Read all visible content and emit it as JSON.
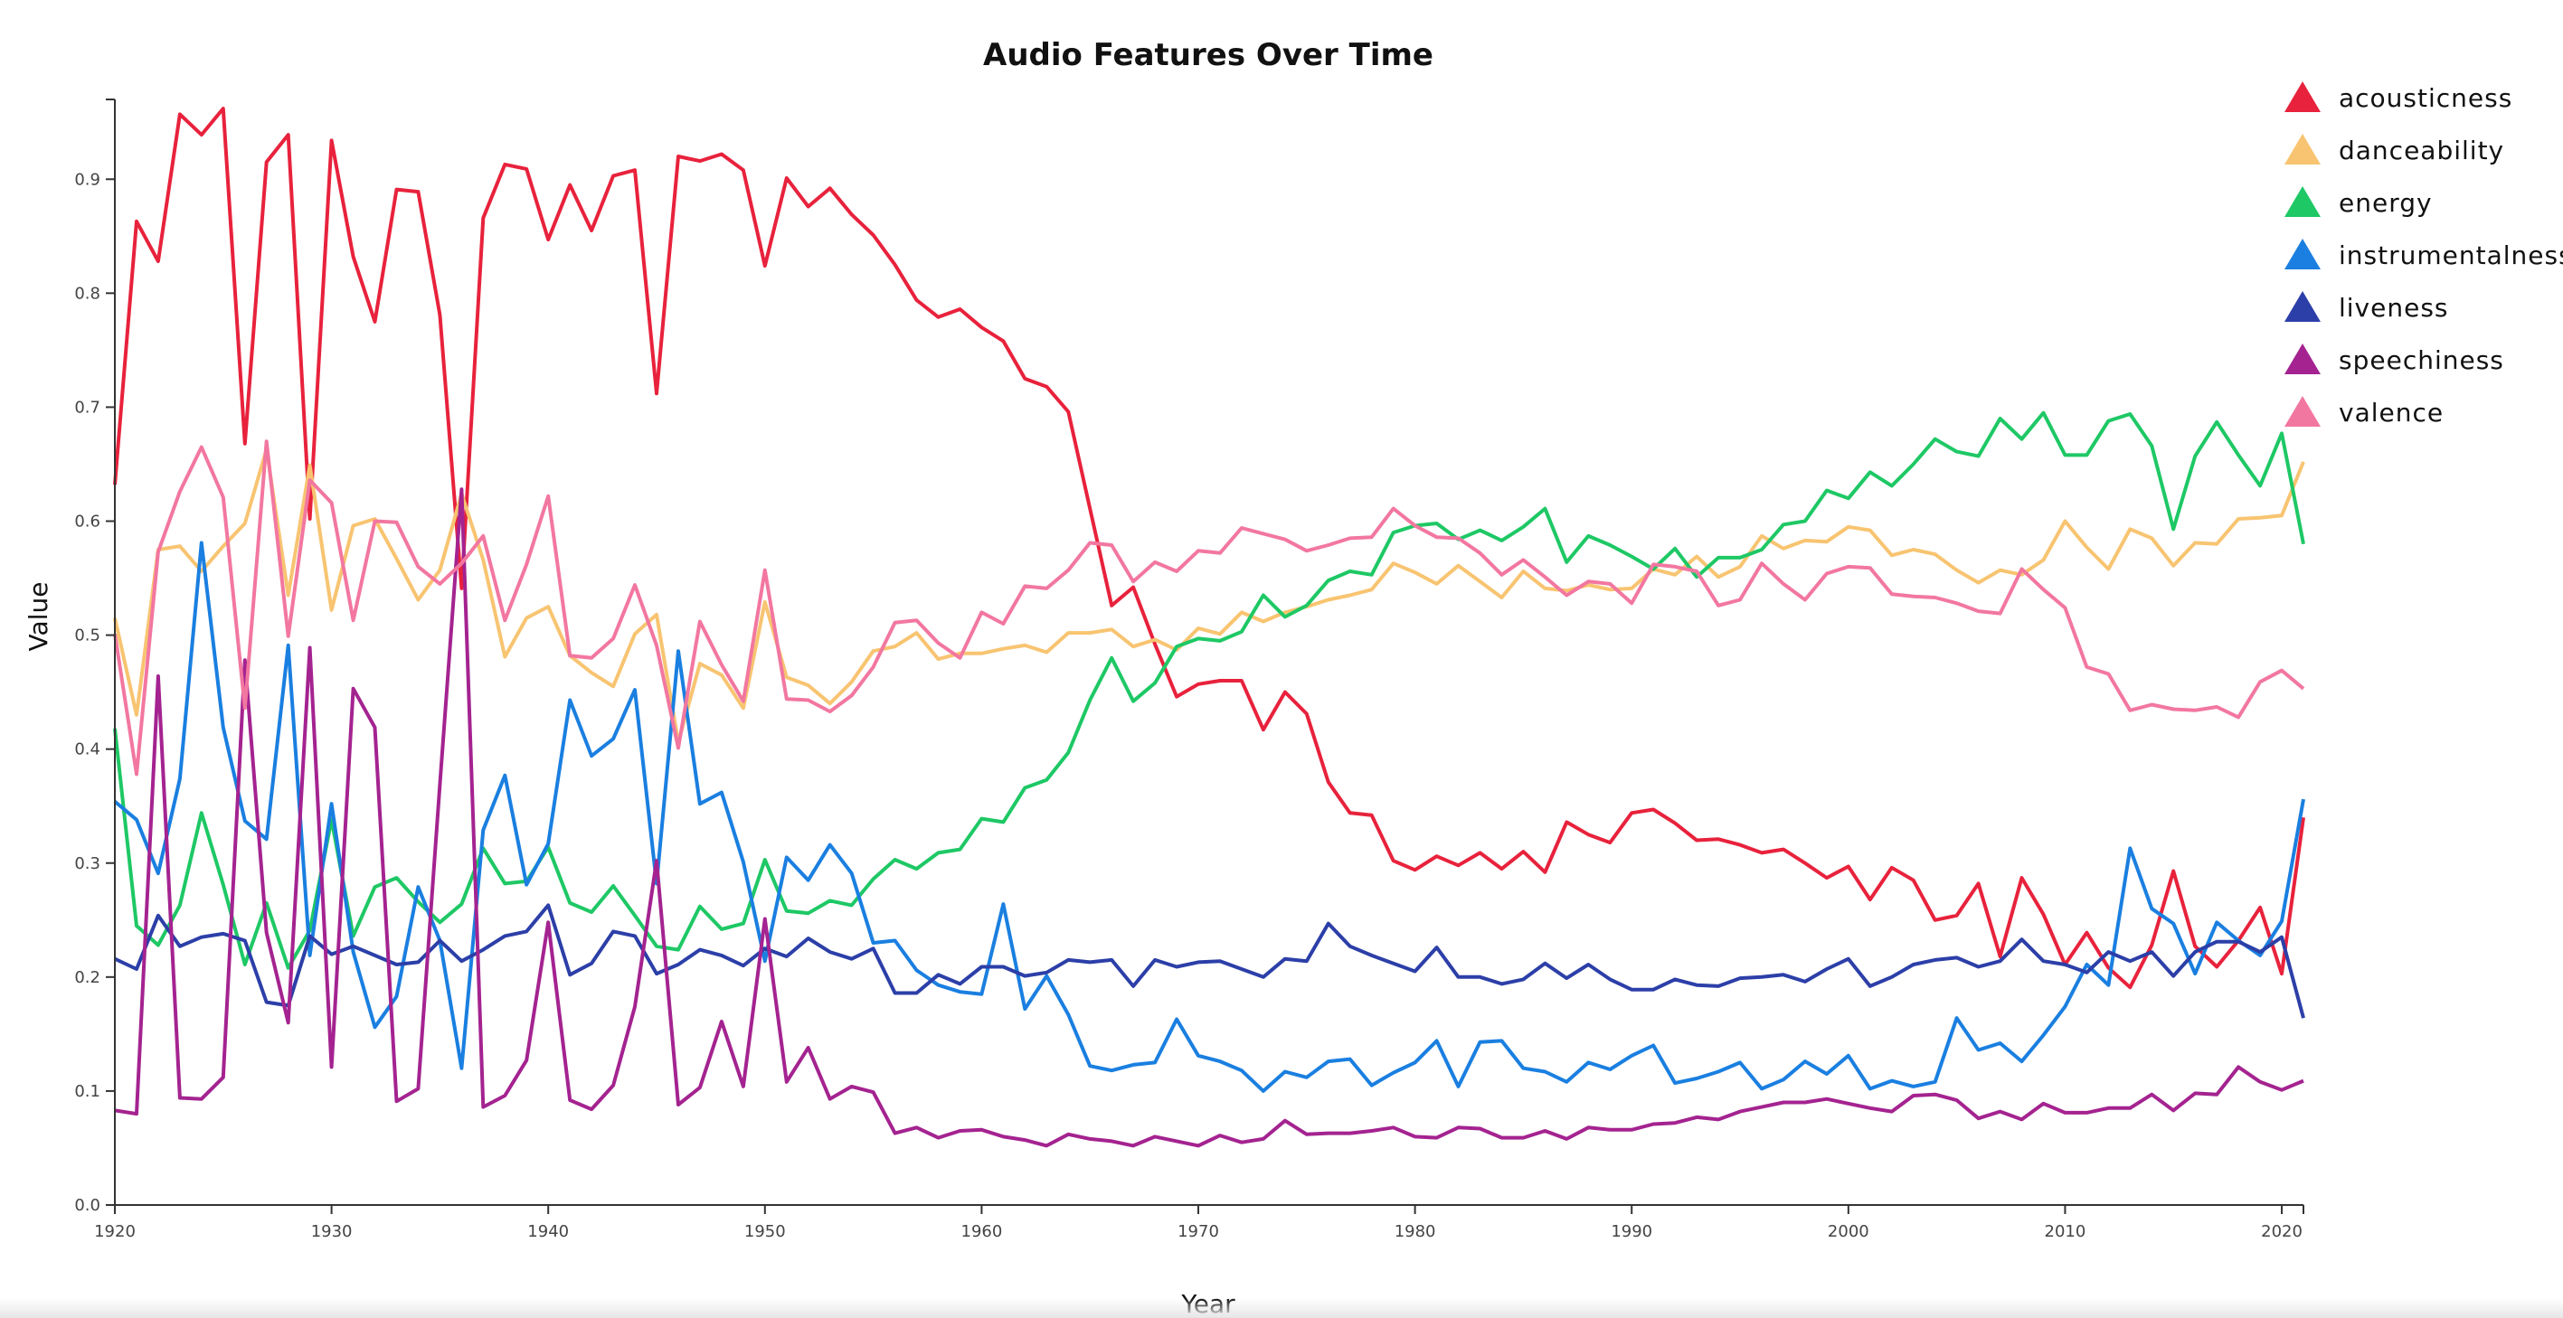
{
  "chart_data": {
    "type": "line",
    "title": "Audio Features Over Time",
    "xlabel": "Year",
    "ylabel": "Value",
    "xlim": [
      1920,
      2021
    ],
    "ylim": [
      0,
      0.97
    ],
    "x_ticks": [
      "1920",
      "1930",
      "1940",
      "1950",
      "1960",
      "1970",
      "1980",
      "1990",
      "2000",
      "2010",
      "2020"
    ],
    "y_ticks": [
      "0.0",
      "0.1",
      "0.2",
      "0.3",
      "0.4",
      "0.5",
      "0.6",
      "0.7",
      "0.8",
      "0.9"
    ],
    "grid": false,
    "legend_position": "top-right",
    "x": [
      1920,
      1921,
      1922,
      1923,
      1924,
      1925,
      1926,
      1927,
      1928,
      1929,
      1930,
      1931,
      1932,
      1933,
      1934,
      1935,
      1936,
      1937,
      1938,
      1939,
      1940,
      1941,
      1942,
      1943,
      1944,
      1945,
      1946,
      1947,
      1948,
      1949,
      1950,
      1951,
      1952,
      1953,
      1954,
      1955,
      1956,
      1957,
      1958,
      1959,
      1960,
      1961,
      1962,
      1963,
      1964,
      1965,
      1966,
      1967,
      1968,
      1969,
      1970,
      1971,
      1972,
      1973,
      1974,
      1975,
      1976,
      1977,
      1978,
      1979,
      1980,
      1981,
      1982,
      1983,
      1984,
      1985,
      1986,
      1987,
      1988,
      1989,
      1990,
      1991,
      1992,
      1993,
      1994,
      1995,
      1996,
      1997,
      1998,
      1999,
      2000,
      2001,
      2002,
      2003,
      2004,
      2005,
      2006,
      2007,
      2008,
      2009,
      2010,
      2011,
      2012,
      2013,
      2014,
      2015,
      2016,
      2017,
      2018,
      2019,
      2020,
      2021
    ],
    "series": [
      {
        "name": "acousticness",
        "color": "#e8223c",
        "values": [
          0.632,
          0.863,
          0.828,
          0.957,
          0.939,
          0.962,
          0.668,
          0.915,
          0.939,
          0.602,
          0.934,
          0.832,
          0.775,
          0.891,
          0.889,
          0.781,
          0.541,
          0.866,
          0.913,
          0.909,
          0.847,
          0.895,
          0.855,
          0.903,
          0.908,
          0.712,
          0.92,
          0.916,
          0.922,
          0.908,
          0.824,
          0.901,
          0.876,
          0.892,
          0.869,
          0.851,
          0.825,
          0.794,
          0.779,
          0.786,
          0.77,
          0.758,
          0.725,
          0.718,
          0.696,
          0.611,
          0.526,
          0.542,
          0.492,
          0.446,
          0.457,
          0.46,
          0.46,
          0.417,
          0.45,
          0.431,
          0.371,
          0.344,
          0.342,
          0.302,
          0.294,
          0.306,
          0.298,
          0.309,
          0.295,
          0.31,
          0.292,
          0.336,
          0.325,
          0.318,
          0.344,
          0.347,
          0.335,
          0.32,
          0.321,
          0.316,
          0.309,
          0.312,
          0.3,
          0.287,
          0.297,
          0.268,
          0.296,
          0.285,
          0.25,
          0.254,
          0.282,
          0.218,
          0.287,
          0.255,
          0.211,
          0.239,
          0.208,
          0.191,
          0.228,
          0.293,
          0.227,
          0.209,
          0.232,
          0.261,
          0.203,
          0.34
        ]
      },
      {
        "name": "danceability",
        "color": "#f8c471",
        "values": [
          0.515,
          0.43,
          0.575,
          0.578,
          0.556,
          0.578,
          0.598,
          0.663,
          0.535,
          0.649,
          0.522,
          0.596,
          0.602,
          0.567,
          0.531,
          0.557,
          0.624,
          0.566,
          0.481,
          0.515,
          0.525,
          0.482,
          0.467,
          0.455,
          0.501,
          0.518,
          0.406,
          0.475,
          0.465,
          0.436,
          0.529,
          0.463,
          0.456,
          0.44,
          0.459,
          0.486,
          0.49,
          0.502,
          0.479,
          0.484,
          0.484,
          0.488,
          0.491,
          0.485,
          0.502,
          0.502,
          0.505,
          0.49,
          0.496,
          0.487,
          0.506,
          0.501,
          0.52,
          0.512,
          0.52,
          0.525,
          0.531,
          0.535,
          0.54,
          0.563,
          0.555,
          0.545,
          0.561,
          0.547,
          0.533,
          0.556,
          0.541,
          0.539,
          0.544,
          0.54,
          0.541,
          0.558,
          0.553,
          0.569,
          0.551,
          0.56,
          0.587,
          0.576,
          0.583,
          0.582,
          0.595,
          0.592,
          0.57,
          0.575,
          0.571,
          0.557,
          0.546,
          0.557,
          0.553,
          0.566,
          0.6,
          0.577,
          0.558,
          0.593,
          0.585,
          0.561,
          0.581,
          0.58,
          0.602,
          0.603,
          0.605,
          0.652
        ]
      },
      {
        "name": "energy",
        "color": "#1ec865",
        "values": [
          0.418,
          0.245,
          0.228,
          0.263,
          0.344,
          0.281,
          0.211,
          0.265,
          0.208,
          0.241,
          0.338,
          0.236,
          0.279,
          0.287,
          0.266,
          0.248,
          0.264,
          0.313,
          0.282,
          0.284,
          0.314,
          0.265,
          0.257,
          0.28,
          0.254,
          0.227,
          0.224,
          0.262,
          0.242,
          0.247,
          0.303,
          0.258,
          0.256,
          0.267,
          0.263,
          0.286,
          0.303,
          0.295,
          0.309,
          0.312,
          0.339,
          0.336,
          0.366,
          0.373,
          0.397,
          0.443,
          0.48,
          0.442,
          0.458,
          0.49,
          0.497,
          0.495,
          0.503,
          0.535,
          0.516,
          0.526,
          0.548,
          0.556,
          0.553,
          0.59,
          0.596,
          0.598,
          0.584,
          0.592,
          0.583,
          0.595,
          0.611,
          0.564,
          0.587,
          0.579,
          0.569,
          0.558,
          0.576,
          0.551,
          0.568,
          0.568,
          0.575,
          0.597,
          0.6,
          0.627,
          0.62,
          0.643,
          0.631,
          0.65,
          0.672,
          0.661,
          0.657,
          0.69,
          0.672,
          0.695,
          0.658,
          0.658,
          0.688,
          0.694,
          0.666,
          0.593,
          0.657,
          0.687,
          0.658,
          0.631,
          0.677,
          0.58
        ]
      },
      {
        "name": "instrumentalness",
        "color": "#1a7fe0",
        "values": [
          0.354,
          0.338,
          0.291,
          0.374,
          0.581,
          0.419,
          0.337,
          0.321,
          0.491,
          0.219,
          0.352,
          0.222,
          0.156,
          0.183,
          0.279,
          0.232,
          0.12,
          0.329,
          0.377,
          0.281,
          0.317,
          0.443,
          0.394,
          0.409,
          0.452,
          0.282,
          0.486,
          0.352,
          0.362,
          0.301,
          0.214,
          0.305,
          0.285,
          0.316,
          0.291,
          0.23,
          0.232,
          0.206,
          0.193,
          0.187,
          0.185,
          0.264,
          0.172,
          0.201,
          0.167,
          0.122,
          0.118,
          0.123,
          0.125,
          0.163,
          0.131,
          0.126,
          0.118,
          0.1,
          0.117,
          0.112,
          0.126,
          0.128,
          0.105,
          0.116,
          0.125,
          0.144,
          0.104,
          0.143,
          0.144,
          0.12,
          0.117,
          0.108,
          0.125,
          0.119,
          0.131,
          0.14,
          0.107,
          0.111,
          0.117,
          0.125,
          0.102,
          0.11,
          0.126,
          0.115,
          0.131,
          0.102,
          0.109,
          0.104,
          0.108,
          0.164,
          0.136,
          0.142,
          0.126,
          0.149,
          0.174,
          0.211,
          0.193,
          0.313,
          0.26,
          0.247,
          0.203,
          0.248,
          0.232,
          0.219,
          0.249,
          0.356
        ]
      },
      {
        "name": "liveness",
        "color": "#2c3fa8",
        "values": [
          0.216,
          0.207,
          0.254,
          0.227,
          0.235,
          0.238,
          0.232,
          0.178,
          0.175,
          0.236,
          0.22,
          0.227,
          0.219,
          0.211,
          0.213,
          0.232,
          0.214,
          0.224,
          0.236,
          0.24,
          0.263,
          0.202,
          0.212,
          0.24,
          0.236,
          0.203,
          0.211,
          0.224,
          0.219,
          0.21,
          0.225,
          0.218,
          0.234,
          0.222,
          0.216,
          0.225,
          0.186,
          0.186,
          0.202,
          0.194,
          0.209,
          0.209,
          0.201,
          0.204,
          0.215,
          0.213,
          0.215,
          0.192,
          0.215,
          0.209,
          0.213,
          0.214,
          0.207,
          0.2,
          0.216,
          0.214,
          0.247,
          0.227,
          0.219,
          0.212,
          0.205,
          0.226,
          0.2,
          0.2,
          0.194,
          0.198,
          0.212,
          0.199,
          0.211,
          0.198,
          0.189,
          0.189,
          0.198,
          0.193,
          0.192,
          0.199,
          0.2,
          0.202,
          0.196,
          0.207,
          0.216,
          0.192,
          0.2,
          0.211,
          0.215,
          0.217,
          0.209,
          0.214,
          0.233,
          0.214,
          0.211,
          0.204,
          0.222,
          0.214,
          0.222,
          0.201,
          0.222,
          0.231,
          0.231,
          0.222,
          0.235,
          0.164
        ]
      },
      {
        "name": "speechiness",
        "color": "#a42390",
        "values": [
          0.083,
          0.08,
          0.464,
          0.094,
          0.093,
          0.112,
          0.478,
          0.239,
          0.16,
          0.489,
          0.121,
          0.453,
          0.419,
          0.091,
          0.102,
          0.369,
          0.628,
          0.086,
          0.096,
          0.127,
          0.248,
          0.092,
          0.084,
          0.105,
          0.174,
          0.302,
          0.088,
          0.103,
          0.161,
          0.104,
          0.251,
          0.108,
          0.138,
          0.093,
          0.104,
          0.099,
          0.063,
          0.068,
          0.059,
          0.065,
          0.066,
          0.06,
          0.057,
          0.052,
          0.062,
          0.058,
          0.056,
          0.052,
          0.06,
          0.056,
          0.052,
          0.061,
          0.055,
          0.058,
          0.074,
          0.062,
          0.063,
          0.063,
          0.065,
          0.068,
          0.06,
          0.059,
          0.068,
          0.067,
          0.059,
          0.059,
          0.065,
          0.058,
          0.068,
          0.066,
          0.066,
          0.071,
          0.072,
          0.077,
          0.075,
          0.082,
          0.086,
          0.09,
          0.09,
          0.093,
          0.089,
          0.085,
          0.082,
          0.096,
          0.097,
          0.092,
          0.076,
          0.082,
          0.075,
          0.089,
          0.081,
          0.081,
          0.085,
          0.085,
          0.097,
          0.083,
          0.098,
          0.097,
          0.121,
          0.108,
          0.101,
          0.109
        ]
      },
      {
        "name": "valence",
        "color": "#f277a0",
        "values": [
          0.501,
          0.378,
          0.573,
          0.626,
          0.665,
          0.621,
          0.436,
          0.67,
          0.499,
          0.636,
          0.616,
          0.513,
          0.6,
          0.599,
          0.56,
          0.545,
          0.563,
          0.587,
          0.513,
          0.562,
          0.622,
          0.482,
          0.48,
          0.497,
          0.544,
          0.491,
          0.401,
          0.512,
          0.474,
          0.442,
          0.557,
          0.444,
          0.443,
          0.433,
          0.447,
          0.472,
          0.511,
          0.513,
          0.493,
          0.48,
          0.52,
          0.51,
          0.543,
          0.541,
          0.557,
          0.581,
          0.579,
          0.547,
          0.564,
          0.556,
          0.574,
          0.572,
          0.594,
          0.589,
          0.584,
          0.574,
          0.579,
          0.585,
          0.586,
          0.611,
          0.596,
          0.586,
          0.585,
          0.572,
          0.553,
          0.566,
          0.551,
          0.535,
          0.547,
          0.545,
          0.528,
          0.562,
          0.56,
          0.556,
          0.526,
          0.531,
          0.563,
          0.545,
          0.531,
          0.554,
          0.56,
          0.559,
          0.536,
          0.534,
          0.533,
          0.528,
          0.521,
          0.519,
          0.558,
          0.54,
          0.524,
          0.472,
          0.466,
          0.434,
          0.439,
          0.435,
          0.434,
          0.437,
          0.428,
          0.459,
          0.469,
          0.453
        ]
      }
    ]
  }
}
